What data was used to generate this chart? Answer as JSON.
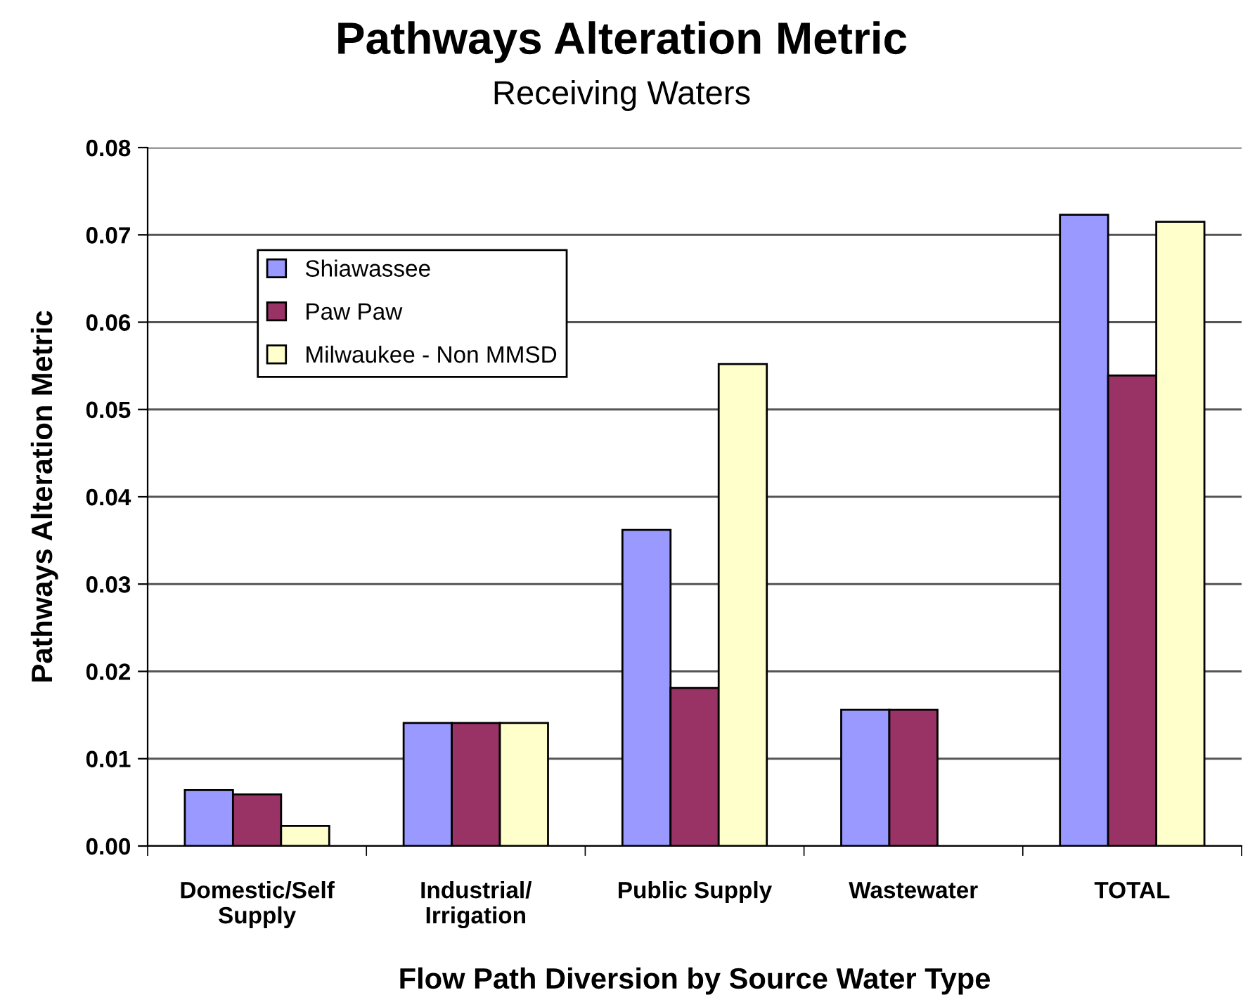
{
  "chart_data": {
    "type": "bar",
    "title": "Pathways Alteration Metric",
    "subtitle": "Receiving Waters",
    "xlabel": "Flow Path Diversion by Source Water Type",
    "ylabel": "Pathways Alteration Metric",
    "categories": [
      "Domestic/Self\nSupply",
      "Industrial/\nIrrigation",
      "Public Supply",
      "Wastewater",
      "TOTAL"
    ],
    "series": [
      {
        "name": "Shiawassee",
        "color": "#9999ff",
        "values": [
          0.0064,
          0.0141,
          0.0362,
          0.0156,
          0.0723
        ]
      },
      {
        "name": "Paw Paw",
        "color": "#993366",
        "values": [
          0.0059,
          0.0141,
          0.0181,
          0.0156,
          0.0539
        ]
      },
      {
        "name": "Milwaukee - Non MMSD",
        "color": "#ffffcc",
        "values": [
          0.0023,
          0.0141,
          0.0552,
          null,
          0.0715
        ]
      }
    ],
    "ylim": [
      0,
      0.08
    ],
    "yticks": [
      {
        "value": 0,
        "label": "0.00"
      },
      0.01,
      0.02,
      0.03,
      0.04,
      0.05,
      0.06,
      0.07,
      0.08
    ],
    "grid": "y",
    "legend": "top left"
  }
}
